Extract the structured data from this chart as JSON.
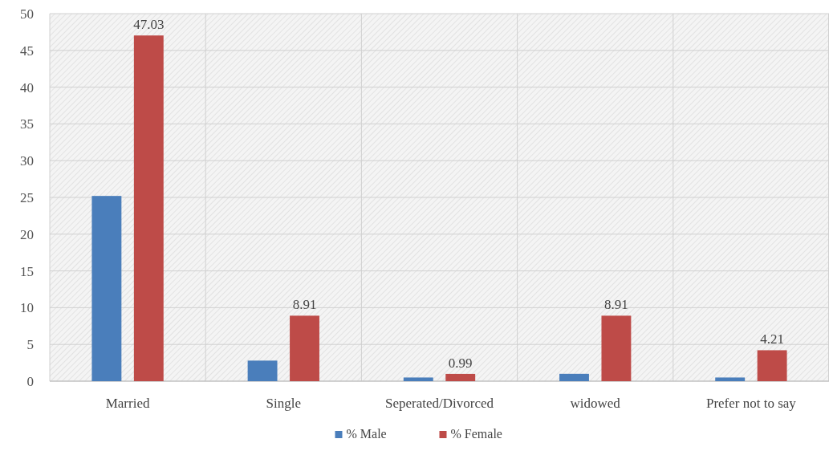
{
  "chart_data": {
    "type": "bar",
    "categories": [
      "Married",
      "Single",
      "Seperated/Divorced",
      "widowed",
      "Prefer not to say"
    ],
    "series": [
      {
        "name": "% Male",
        "color": "#4a7ebb",
        "values": [
          25.2,
          2.8,
          0.5,
          1.0,
          0.5
        ]
      },
      {
        "name": "% Female",
        "color": "#be4b48",
        "values": [
          47.03,
          8.91,
          0.99,
          8.91,
          4.21
        ],
        "value_labels": [
          "47.03",
          "8.91",
          "0.99",
          "8.91",
          "4.21"
        ]
      }
    ],
    "ylim": [
      0,
      50
    ],
    "yticks": [
      0,
      5,
      10,
      15,
      20,
      25,
      30,
      35,
      40,
      45,
      50
    ],
    "grid": true,
    "legend": "bottom"
  }
}
